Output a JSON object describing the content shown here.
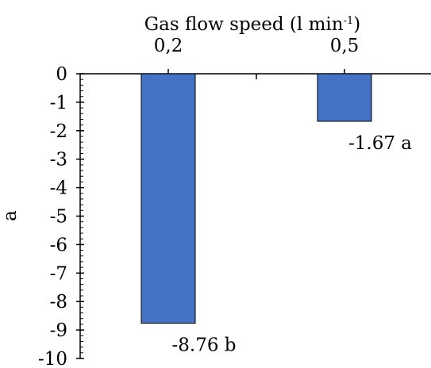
{
  "chart_data": {
    "type": "bar",
    "title": "",
    "xlabel": "Gas flow speed (l min",
    "xlabel_sup": "-1",
    "xlabel_suffix": ")",
    "ylabel": "a",
    "categories": [
      "0,2",
      "0,5"
    ],
    "values": [
      -8.76,
      -1.67
    ],
    "data_labels": [
      "-8.76 b",
      "-1.67 a"
    ],
    "ylim": [
      -10,
      0
    ],
    "yticks": [
      "0",
      "-1",
      "-2",
      "-3",
      "-4",
      "-5",
      "-6",
      "-7",
      "-8",
      "-9",
      "-10"
    ],
    "x_axis_position": "top",
    "grid": false,
    "bar_color": "#4472C4",
    "bar_edge_color": "#000000"
  }
}
